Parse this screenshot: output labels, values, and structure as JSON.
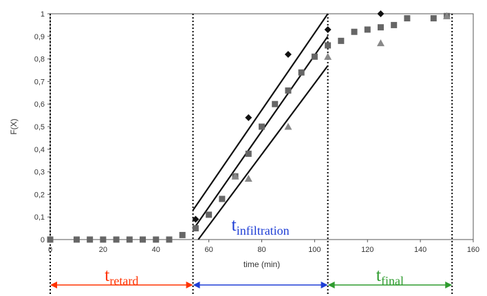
{
  "chart_data": {
    "type": "scatter",
    "title": "",
    "xlabel": "time (min)",
    "ylabel": "F(X)",
    "xlim": [
      0,
      160
    ],
    "ylim": [
      0,
      1
    ],
    "x_ticks": [
      "0",
      "20",
      "40",
      "60",
      "80",
      "100",
      "120",
      "140",
      "160"
    ],
    "y_ticks": [
      "0",
      "0,1",
      "0,2",
      "0,3",
      "0,4",
      "0,5",
      "0,6",
      "0,7",
      "0,8",
      "0,9",
      "1"
    ],
    "grid": false,
    "legend": "none",
    "series": [
      {
        "marker": "diamond",
        "color": "#111111",
        "points": [
          [
            55,
            0.09
          ],
          [
            75,
            0.54
          ],
          [
            90,
            0.82
          ],
          [
            105,
            0.93
          ],
          [
            125,
            1.0
          ]
        ]
      },
      {
        "marker": "square",
        "color": "#666666",
        "points": [
          [
            0,
            0
          ],
          [
            10,
            0
          ],
          [
            15,
            0
          ],
          [
            20,
            0
          ],
          [
            25,
            0
          ],
          [
            30,
            0
          ],
          [
            35,
            0
          ],
          [
            40,
            0
          ],
          [
            45,
            0
          ],
          [
            50,
            0.02
          ],
          [
            55,
            0.05
          ],
          [
            60,
            0.11
          ],
          [
            65,
            0.18
          ],
          [
            70,
            0.28
          ],
          [
            75,
            0.38
          ],
          [
            80,
            0.5
          ],
          [
            85,
            0.6
          ],
          [
            90,
            0.66
          ],
          [
            95,
            0.74
          ],
          [
            100,
            0.81
          ],
          [
            105,
            0.86
          ],
          [
            110,
            0.88
          ],
          [
            115,
            0.92
          ],
          [
            120,
            0.93
          ],
          [
            125,
            0.94
          ],
          [
            130,
            0.95
          ],
          [
            135,
            0.98
          ],
          [
            145,
            0.98
          ],
          [
            150,
            0.99
          ]
        ]
      },
      {
        "marker": "triangle",
        "color": "#888888",
        "points": [
          [
            70,
            0.28
          ],
          [
            75,
            0.27
          ],
          [
            90,
            0.5
          ],
          [
            105,
            0.81
          ],
          [
            125,
            0.87
          ],
          [
            150,
            0.99
          ]
        ]
      }
    ],
    "fit_lines": [
      {
        "x": [
          54,
          105
        ],
        "y": [
          0.13,
          1.0
        ]
      },
      {
        "x": [
          55,
          105
        ],
        "y": [
          0.06,
          0.9
        ]
      },
      {
        "x": [
          56,
          105
        ],
        "y": [
          0.0,
          0.77
        ]
      }
    ],
    "phase_boundaries": [
      0,
      54,
      105,
      152
    ],
    "phases": [
      {
        "main": "t",
        "sub": "retard",
        "color": "#ff3300"
      },
      {
        "main": "t",
        "sub": "infiltration",
        "color": "#1f3fd6"
      },
      {
        "main": "t",
        "sub": "final",
        "color": "#2e9b2e"
      }
    ]
  }
}
